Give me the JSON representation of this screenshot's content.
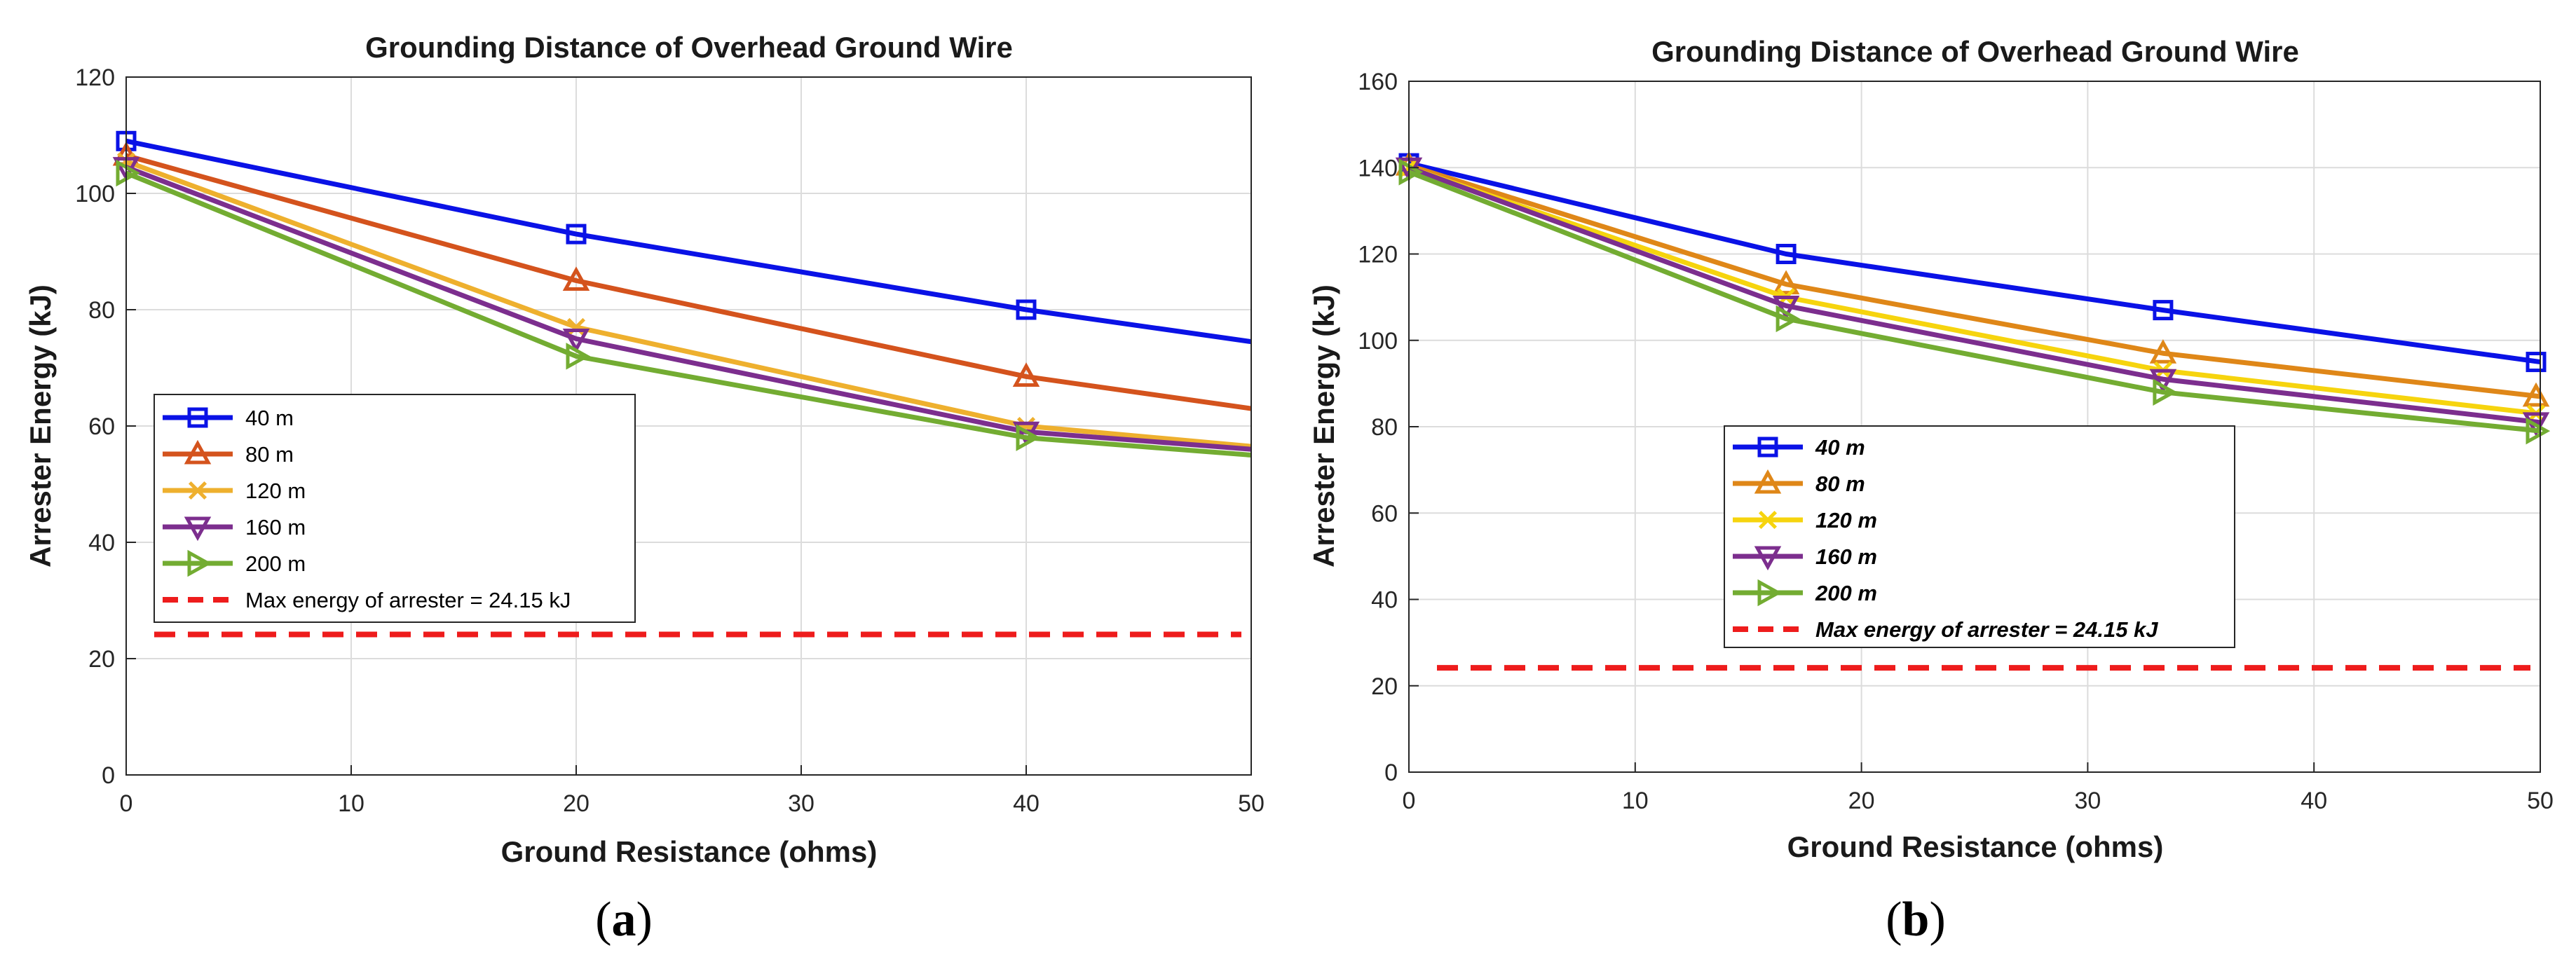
{
  "chart_data": [
    {
      "type": "line",
      "title": "Grounding Distance of Overhead Ground Wire",
      "xlabel": "Ground Resistance (ohms)",
      "ylabel": "Arrester Energy (kJ)",
      "xlim": [
        0,
        50
      ],
      "ylim": [
        0,
        120
      ],
      "xticks": [
        0,
        10,
        20,
        30,
        40,
        50
      ],
      "yticks": [
        0,
        20,
        40,
        60,
        80,
        100,
        120
      ],
      "grid": true,
      "legend_position": "middle-left",
      "legend_italic": false,
      "caption_letter": "a",
      "x": [
        0,
        20,
        40,
        50
      ],
      "series": [
        {
          "name": "40 m",
          "marker": "square",
          "color": "#0a12e6",
          "values": [
            109,
            93,
            80,
            74.5
          ]
        },
        {
          "name": "80 m",
          "marker": "triangle-up",
          "color": "#d4531d",
          "values": [
            106.5,
            85,
            68.5,
            63
          ]
        },
        {
          "name": "120 m",
          "marker": "x",
          "color": "#eeb02e",
          "values": [
            105.5,
            77,
            60,
            56.5
          ]
        },
        {
          "name": "160 m",
          "marker": "triangle-down",
          "color": "#7c2e8e",
          "values": [
            104.5,
            75,
            59,
            56
          ]
        },
        {
          "name": "200 m",
          "marker": "triangle-right",
          "color": "#73ac32",
          "values": [
            103.5,
            72,
            58,
            55
          ]
        }
      ],
      "reference_line": {
        "name": "Max energy of arrester = 24.15 kJ",
        "value": 24.15,
        "color": "#ee1c1c"
      }
    },
    {
      "type": "line",
      "title": "Grounding Distance of Overhead Ground Wire",
      "xlabel": "Ground Resistance (ohms)",
      "ylabel": "Arrester Energy (kJ)",
      "xlim": [
        0,
        50
      ],
      "ylim": [
        0,
        160
      ],
      "xticks": [
        0,
        10,
        20,
        30,
        40,
        50
      ],
      "yticks": [
        0,
        20,
        40,
        60,
        80,
        100,
        120,
        140,
        160
      ],
      "grid": true,
      "legend_position": "center",
      "legend_italic": true,
      "caption_letter": "b",
      "x": [
        0,
        16.67,
        33.33,
        50
      ],
      "series": [
        {
          "name": "40 m",
          "marker": "square",
          "color": "#0a12e6",
          "values": [
            141,
            120,
            107,
            95
          ]
        },
        {
          "name": "80 m",
          "marker": "triangle-up",
          "color": "#df8718",
          "values": [
            140.5,
            113,
            97,
            87
          ]
        },
        {
          "name": "120 m",
          "marker": "x",
          "color": "#f6d40e",
          "values": [
            140,
            110,
            93,
            83
          ]
        },
        {
          "name": "160 m",
          "marker": "triangle-down",
          "color": "#7c2e8e",
          "values": [
            140,
            108,
            91,
            81
          ]
        },
        {
          "name": "200 m",
          "marker": "triangle-right",
          "color": "#73ac32",
          "values": [
            139,
            105,
            88,
            79
          ]
        }
      ],
      "reference_line": {
        "name": "Max energy of arrester = 24.15 kJ",
        "value": 24.15,
        "color": "#ee1c1c"
      }
    }
  ]
}
